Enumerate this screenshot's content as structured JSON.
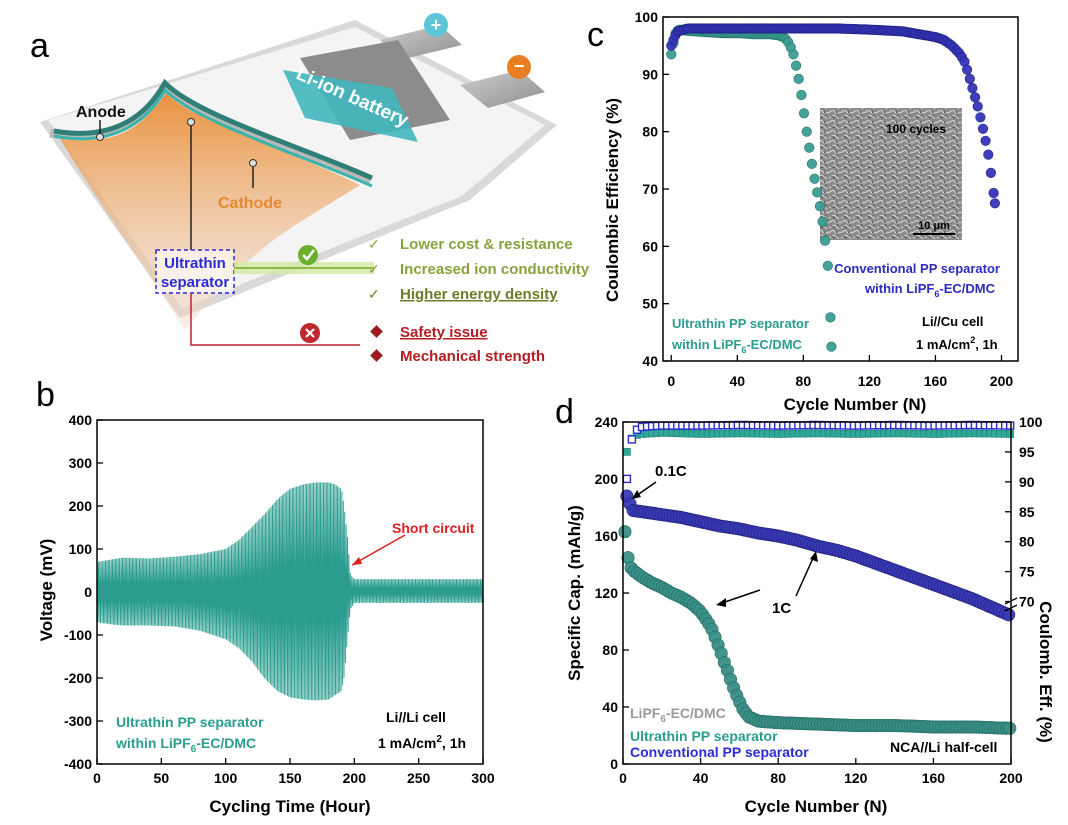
{
  "panel_a": {
    "letter": "a",
    "plus_symbol": "+",
    "minus_symbol": "−",
    "battery_label": "Li-ion battery",
    "anode_label": "Anode",
    "cathode_label": "Cathode",
    "separator_label_1": "Ultrathin",
    "separator_label_2": "separator",
    "pros": [
      "Lower cost & resistance",
      "Increased ion conductivity",
      "Higher energy density"
    ],
    "cons": [
      "Safety issue",
      "Mechanical strength"
    ],
    "colors": {
      "pro": "#8aa23c",
      "con": "#b51c22",
      "separator": "#2b2bd6",
      "cathode": "#e8903a"
    }
  },
  "panel_labels": {
    "b": "b",
    "c": "c",
    "d": "d"
  },
  "chart_data": [
    {
      "id": "b",
      "type": "line",
      "xlabel": "Cycling Time (Hour)",
      "ylabel": "Voltage (mV)",
      "xlim": [
        0,
        300
      ],
      "ylim": [
        -400,
        400
      ],
      "xticks": [
        "0",
        "50",
        "100",
        "150",
        "200",
        "250",
        "300"
      ],
      "yticks": [
        "400",
        "300",
        "200",
        "100",
        "0",
        "-100",
        "-200",
        "-300",
        "-400"
      ],
      "envelope_x": [
        0,
        10,
        20,
        40,
        60,
        80,
        100,
        110,
        120,
        130,
        140,
        150,
        160,
        170,
        180,
        185,
        190,
        192,
        195,
        197,
        200,
        220,
        250,
        300
      ],
      "envelope_upper": [
        70,
        75,
        80,
        78,
        82,
        88,
        100,
        120,
        150,
        180,
        215,
        240,
        250,
        255,
        255,
        250,
        240,
        200,
        120,
        40,
        30,
        30,
        30,
        30
      ],
      "envelope_lower": [
        -70,
        -75,
        -78,
        -78,
        -80,
        -90,
        -110,
        -130,
        -160,
        -200,
        -230,
        -245,
        -250,
        -252,
        -250,
        -240,
        -230,
        -200,
        -100,
        -40,
        -25,
        -25,
        -25,
        -25
      ],
      "series_color": "#2a9d8f",
      "annotation": "Short circuit",
      "annotation_at": [
        197,
        30
      ],
      "legend_line1": "Ultrathin PP separator",
      "legend_line2_prefix": "within LiPF",
      "legend_line2_sub": "6",
      "legend_line2_suffix": "-EC/DMC",
      "cell_line1": "Li//Li cell",
      "cell_line2": "1 mA/cm",
      "cell_line2_sup": "2",
      "cell_line2_suffix": ", 1h"
    },
    {
      "id": "c",
      "type": "scatter",
      "xlabel": "Cycle Number (N)",
      "ylabel": "Coulombic Efficiency (%)",
      "xlim": [
        -5,
        210
      ],
      "ylim": [
        40,
        100
      ],
      "xticks": [
        "0",
        "40",
        "80",
        "120",
        "160",
        "200"
      ],
      "yticks": [
        "100",
        "90",
        "80",
        "70",
        "60",
        "50",
        "40"
      ],
      "series": [
        {
          "name": "Ultrathin PP separator within LiPF6-EC/DMC",
          "color": "#3a9e93",
          "x": [
            0,
            1,
            2,
            3,
            5,
            10,
            20,
            30,
            40,
            50,
            60,
            65,
            68,
            70,
            72,
            74,
            76,
            78,
            80,
            82,
            84,
            86,
            88,
            90,
            91,
            92,
            93,
            94,
            95,
            96,
            97
          ],
          "y": [
            93.5,
            95,
            96.5,
            97.5,
            97.8,
            97.6,
            97.4,
            97.2,
            97.2,
            97,
            97,
            96.8,
            96.5,
            96,
            95,
            93.5,
            91,
            88,
            84,
            80,
            76.5,
            73,
            70,
            67,
            65.5,
            63.5,
            61.5,
            59,
            56,
            51,
            42.5
          ]
        },
        {
          "name": "Conventional PP separator within LiPF6-EC/DMC",
          "color": "#3535b8",
          "x": [
            0,
            2,
            4,
            10,
            20,
            40,
            60,
            80,
            100,
            120,
            140,
            150,
            160,
            165,
            170,
            175,
            178,
            180,
            182,
            184,
            186,
            188,
            190,
            192,
            194,
            196
          ],
          "y": [
            95,
            96.5,
            97.5,
            98,
            98,
            98,
            98,
            98,
            98,
            97.8,
            97.5,
            97,
            96.5,
            96,
            95,
            93.5,
            92,
            90,
            88,
            86,
            84,
            81.5,
            79,
            76,
            72,
            67.5
          ]
        }
      ],
      "inset_label": "100 cycles",
      "inset_scale": "10 μm",
      "legend_ultrathin_1": "Ultrathin PP separator",
      "legend_ultrathin_2_prefix": "within LiPF",
      "legend_ultrathin_2_sub": "6",
      "legend_ultrathin_2_suffix": "-EC/DMC",
      "legend_conventional_1": "Conventional PP separator",
      "legend_conventional_2_prefix": "within LiPF",
      "legend_conventional_2_sub": "6",
      "legend_conventional_2_suffix": "-EC/DMC",
      "cell_line1": "Li//Cu cell",
      "cell_line2": "1 mA/cm",
      "cell_line2_sup": "2",
      "cell_line2_suffix": ", 1h"
    },
    {
      "id": "d",
      "type": "scatter",
      "xlabel": "Cycle Number (N)",
      "ylabel": "Specific Cap. (mAh/g)",
      "ylabel_right": "Coulomb. Eff. (%)",
      "xlim": [
        0,
        200
      ],
      "ylim": [
        0,
        240
      ],
      "xticks": [
        "0",
        "40",
        "80",
        "120",
        "160",
        "200"
      ],
      "yticks": [
        "240",
        "200",
        "160",
        "120",
        "80",
        "40",
        "0"
      ],
      "yticks_right": [
        "100",
        "95",
        "90",
        "85",
        "80",
        "75",
        "70"
      ],
      "right_axis_map": {
        "value_100": 240,
        "value_70": 114
      },
      "series": [
        {
          "name": "Conventional PP separator capacity",
          "color": "#3a3ab8",
          "x": [
            2,
            5,
            10,
            20,
            30,
            40,
            50,
            60,
            70,
            80,
            90,
            100,
            110,
            120,
            130,
            140,
            150,
            160,
            170,
            180,
            190,
            200
          ],
          "y": [
            188,
            178,
            177,
            175,
            173,
            170,
            167,
            165,
            162,
            160,
            157,
            153,
            150,
            146,
            141,
            136,
            131,
            126,
            121,
            116,
            110,
            104
          ]
        },
        {
          "name": "Ultrathin PP separator capacity",
          "color": "#3a8f86",
          "x": [
            1,
            2,
            3,
            5,
            10,
            15,
            20,
            25,
            30,
            35,
            40,
            42,
            44,
            46,
            48,
            50,
            52,
            54,
            56,
            58,
            60,
            62,
            65,
            70,
            80,
            100,
            120,
            140,
            160,
            180,
            200
          ],
          "y": [
            163,
            152,
            140,
            136,
            131,
            127,
            124,
            120,
            117,
            113,
            107,
            103,
            99,
            94,
            87,
            80,
            72,
            65,
            57,
            50,
            44,
            38,
            33,
            30,
            29,
            28,
            27,
            27,
            26,
            26,
            25
          ]
        },
        {
          "name": "Conventional PP separator CE",
          "color": "#2c2ccf",
          "x": [
            2,
            4,
            6,
            10,
            20,
            40,
            60,
            80,
            100,
            120,
            140,
            160,
            180,
            200
          ],
          "y_ce": [
            90.5,
            96.5,
            98.5,
            99.2,
            99.4,
            99.4,
            99.5,
            99.4,
            99.5,
            99.4,
            99.5,
            99.4,
            99.5,
            99.4
          ]
        },
        {
          "name": "Ultrathin PP separator CE",
          "color": "#2ea898",
          "x": [
            2,
            4,
            6,
            10,
            20,
            40,
            60,
            80,
            100,
            120,
            140,
            160,
            180,
            200
          ],
          "y_ce": [
            95,
            97,
            97.8,
            98,
            98.2,
            98,
            98.1,
            98,
            98.1,
            98,
            98.1,
            98,
            98.1,
            98
          ]
        }
      ],
      "annotation_01c": "0.1C",
      "annotation_1c": "1C",
      "electrolyte": "LiPF",
      "electrolyte_sub": "6",
      "electrolyte_suffix": "-EC/DMC",
      "legend_ultrathin": "Ultrathin PP separator",
      "legend_conventional": "Conventional PP separator",
      "cell_label": "NCA//Li half-cell"
    }
  ]
}
